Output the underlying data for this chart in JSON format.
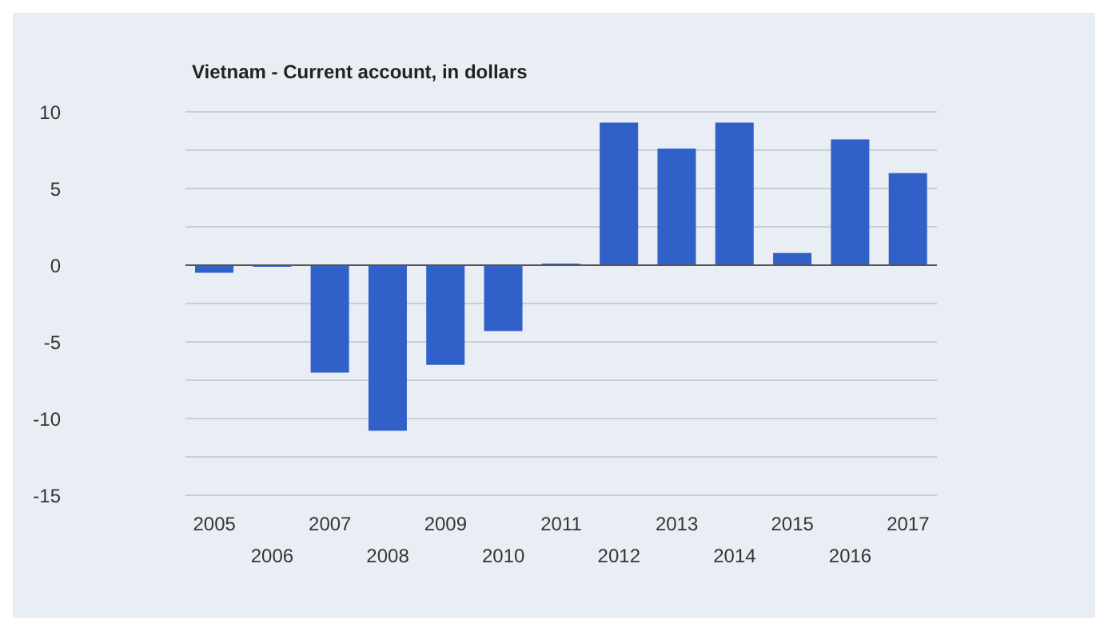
{
  "chart_data": {
    "type": "bar",
    "title": "Vietnam - Current account, in dollars",
    "categories": [
      "2005",
      "2006",
      "2007",
      "2008",
      "2009",
      "2010",
      "2011",
      "2012",
      "2013",
      "2014",
      "2015",
      "2016",
      "2017"
    ],
    "values": [
      -0.5,
      -0.1,
      -7.0,
      -10.8,
      -6.5,
      -4.3,
      0.1,
      9.3,
      7.6,
      9.3,
      0.8,
      8.2,
      6.0
    ],
    "color": "#3060c8",
    "ylim": [
      -15,
      10
    ],
    "yticks": [
      -15,
      {
        "value": -12.5,
        "label": null
      },
      -10,
      {
        "value": -7.5,
        "label": null
      },
      -5,
      {
        "value": -2.5,
        "label": null
      },
      0,
      {
        "value": 2.5,
        "label": null
      },
      5,
      {
        "value": 7.5,
        "label": null
      },
      10
    ],
    "grid": "y"
  }
}
